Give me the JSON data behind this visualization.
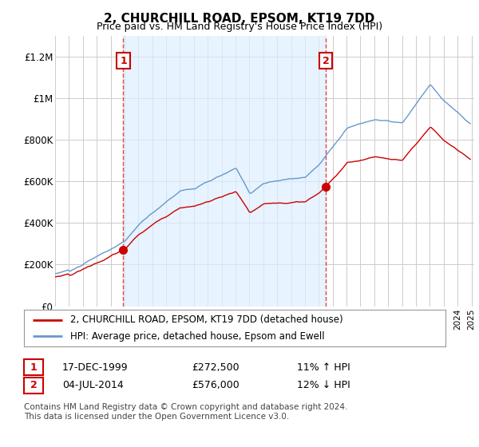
{
  "title": "2, CHURCHILL ROAD, EPSOM, KT19 7DD",
  "subtitle": "Price paid vs. HM Land Registry's House Price Index (HPI)",
  "legend_line1": "2, CHURCHILL ROAD, EPSOM, KT19 7DD (detached house)",
  "legend_line2": "HPI: Average price, detached house, Epsom and Ewell",
  "footnote": "Contains HM Land Registry data © Crown copyright and database right 2024.\nThis data is licensed under the Open Government Licence v3.0.",
  "sale1_date": "17-DEC-1999",
  "sale1_price": "£272,500",
  "sale1_hpi": "11% ↑ HPI",
  "sale2_date": "04-JUL-2014",
  "sale2_price": "£576,000",
  "sale2_hpi": "12% ↓ HPI",
  "red_color": "#cc0000",
  "blue_color": "#6699cc",
  "vline_color": "#dd4444",
  "shade_color": "#ddeeff",
  "background_color": "#ffffff",
  "ylim": [
    0,
    1300000
  ],
  "yticks": [
    0,
    200000,
    400000,
    600000,
    800000,
    1000000,
    1200000
  ],
  "ytick_labels": [
    "£0",
    "£200K",
    "£400K",
    "£600K",
    "£800K",
    "£1M",
    "£1.2M"
  ]
}
